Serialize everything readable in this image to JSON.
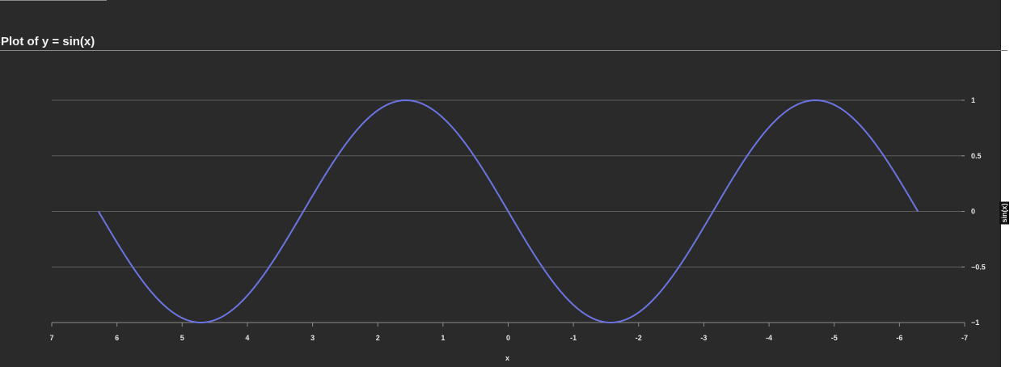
{
  "colors": {
    "panel_background": "#2a2a2a",
    "gridline": "#5c5c5c",
    "axis": "#8c8c8c",
    "series": "#6b74e0",
    "text": "#e6e6e6"
  },
  "chart_data": {
    "type": "line",
    "title": "Plot of y = sin(x)",
    "xlabel": "x",
    "ylabel": "sin(x)",
    "x_axis": {
      "reversed": true,
      "range": [
        7,
        -7
      ],
      "ticks": [
        7,
        6,
        5,
        4,
        3,
        2,
        1,
        0,
        -1,
        -2,
        -3,
        -4,
        -5,
        -6,
        -7
      ]
    },
    "y_axis": {
      "position": "right",
      "range": [
        -1,
        1
      ],
      "ticks": [
        1,
        0.5,
        0,
        -0.5,
        -1
      ],
      "tick_labels": [
        "1",
        "0.5",
        "0",
        "−0.5",
        "−1"
      ]
    },
    "grid": "horizontal",
    "series": [
      {
        "function": "sin(x)",
        "x_range": [
          6.283,
          -6.283
        ],
        "x": [
          6.283,
          5.498,
          4.712,
          3.927,
          3.142,
          2.356,
          1.571,
          0.785,
          0,
          -0.785,
          -1.571,
          -2.356,
          -3.142,
          -3.927,
          -4.712,
          -5.498,
          -6.283
        ],
        "y": [
          0,
          -0.707,
          -1,
          -0.707,
          0,
          0.707,
          1,
          0.707,
          0,
          -0.707,
          -1,
          -0.707,
          0,
          0.707,
          1,
          0.707,
          0
        ]
      }
    ]
  }
}
